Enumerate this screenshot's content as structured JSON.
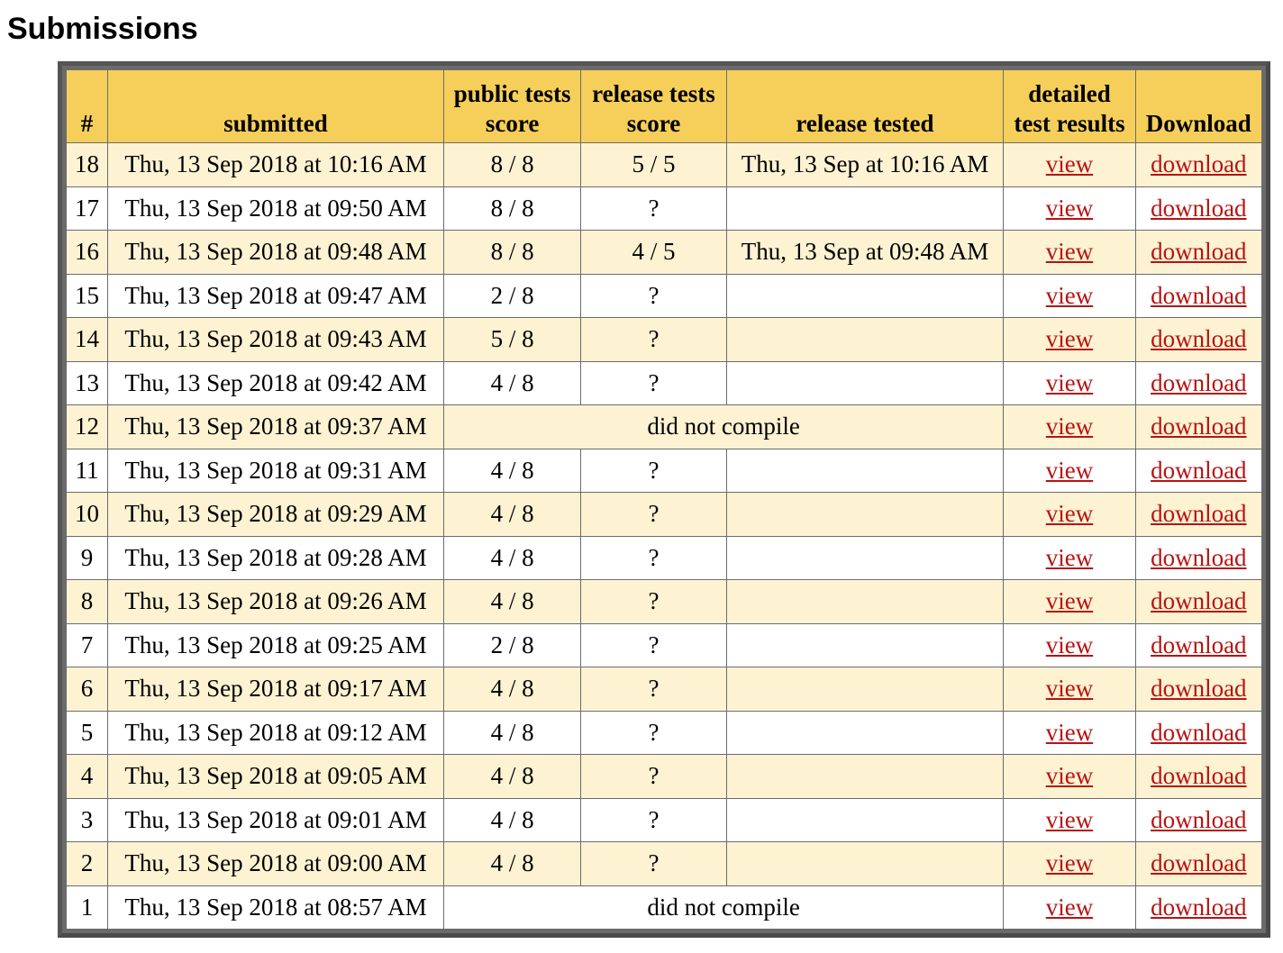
{
  "page": {
    "heading": "Submissions"
  },
  "table": {
    "headers": {
      "num": "#",
      "submitted": "submitted",
      "public_tests_score": [
        "public tests",
        "score"
      ],
      "release_tests_score": [
        "release tests",
        "score"
      ],
      "release_tested": "release tested",
      "detailed_test_results": [
        "detailed",
        "test results"
      ],
      "download": "Download"
    },
    "rows": [
      {
        "num": "18",
        "submitted": "Thu, 13 Sep 2018 at 10:16 AM",
        "public": "8 / 8",
        "release": "5 / 5",
        "release_tested": "Thu, 13 Sep at 10:16 AM",
        "compile_note": null,
        "view": "view",
        "download": "download"
      },
      {
        "num": "17",
        "submitted": "Thu, 13 Sep 2018 at 09:50 AM",
        "public": "8 / 8",
        "release": "?",
        "release_tested": "",
        "compile_note": null,
        "view": "view",
        "download": "download"
      },
      {
        "num": "16",
        "submitted": "Thu, 13 Sep 2018 at 09:48 AM",
        "public": "8 / 8",
        "release": "4 / 5",
        "release_tested": "Thu, 13 Sep at 09:48 AM",
        "compile_note": null,
        "view": "view",
        "download": "download"
      },
      {
        "num": "15",
        "submitted": "Thu, 13 Sep 2018 at 09:47 AM",
        "public": "2 / 8",
        "release": "?",
        "release_tested": "",
        "compile_note": null,
        "view": "view",
        "download": "download"
      },
      {
        "num": "14",
        "submitted": "Thu, 13 Sep 2018 at 09:43 AM",
        "public": "5 / 8",
        "release": "?",
        "release_tested": "",
        "compile_note": null,
        "view": "view",
        "download": "download"
      },
      {
        "num": "13",
        "submitted": "Thu, 13 Sep 2018 at 09:42 AM",
        "public": "4 / 8",
        "release": "?",
        "release_tested": "",
        "compile_note": null,
        "view": "view",
        "download": "download"
      },
      {
        "num": "12",
        "submitted": "Thu, 13 Sep 2018 at 09:37 AM",
        "public": null,
        "release": null,
        "release_tested": null,
        "compile_note": "did not compile",
        "view": "view",
        "download": "download"
      },
      {
        "num": "11",
        "submitted": "Thu, 13 Sep 2018 at 09:31 AM",
        "public": "4 / 8",
        "release": "?",
        "release_tested": "",
        "compile_note": null,
        "view": "view",
        "download": "download"
      },
      {
        "num": "10",
        "submitted": "Thu, 13 Sep 2018 at 09:29 AM",
        "public": "4 / 8",
        "release": "?",
        "release_tested": "",
        "compile_note": null,
        "view": "view",
        "download": "download"
      },
      {
        "num": "9",
        "submitted": "Thu, 13 Sep 2018 at 09:28 AM",
        "public": "4 / 8",
        "release": "?",
        "release_tested": "",
        "compile_note": null,
        "view": "view",
        "download": "download"
      },
      {
        "num": "8",
        "submitted": "Thu, 13 Sep 2018 at 09:26 AM",
        "public": "4 / 8",
        "release": "?",
        "release_tested": "",
        "compile_note": null,
        "view": "view",
        "download": "download"
      },
      {
        "num": "7",
        "submitted": "Thu, 13 Sep 2018 at 09:25 AM",
        "public": "2 / 8",
        "release": "?",
        "release_tested": "",
        "compile_note": null,
        "view": "view",
        "download": "download"
      },
      {
        "num": "6",
        "submitted": "Thu, 13 Sep 2018 at 09:17 AM",
        "public": "4 / 8",
        "release": "?",
        "release_tested": "",
        "compile_note": null,
        "view": "view",
        "download": "download"
      },
      {
        "num": "5",
        "submitted": "Thu, 13 Sep 2018 at 09:12 AM",
        "public": "4 / 8",
        "release": "?",
        "release_tested": "",
        "compile_note": null,
        "view": "view",
        "download": "download"
      },
      {
        "num": "4",
        "submitted": "Thu, 13 Sep 2018 at 09:05 AM",
        "public": "4 / 8",
        "release": "?",
        "release_tested": "",
        "compile_note": null,
        "view": "view",
        "download": "download"
      },
      {
        "num": "3",
        "submitted": "Thu, 13 Sep 2018 at 09:01 AM",
        "public": "4 / 8",
        "release": "?",
        "release_tested": "",
        "compile_note": null,
        "view": "view",
        "download": "download"
      },
      {
        "num": "2",
        "submitted": "Thu, 13 Sep 2018 at 09:00 AM",
        "public": "4 / 8",
        "release": "?",
        "release_tested": "",
        "compile_note": null,
        "view": "view",
        "download": "download"
      },
      {
        "num": "1",
        "submitted": "Thu, 13 Sep 2018 at 08:57 AM",
        "public": null,
        "release": null,
        "release_tested": null,
        "compile_note": "did not compile",
        "view": "view",
        "download": "download"
      }
    ]
  },
  "colors": {
    "header_bg": "#f6cf5a",
    "odd_row_bg": "#fdf2d2",
    "even_row_bg": "#ffffff",
    "link": "#b81313",
    "frame": "#555555"
  }
}
